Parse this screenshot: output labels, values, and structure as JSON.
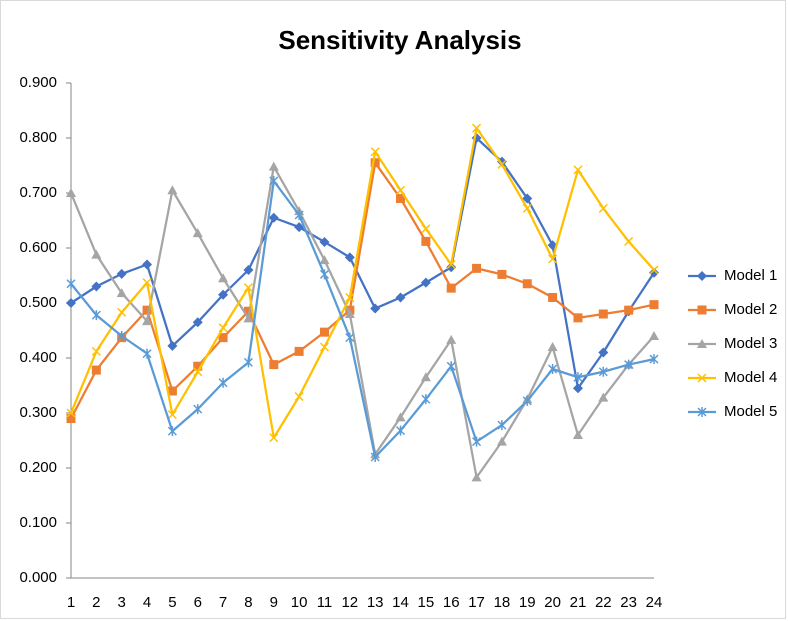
{
  "chart_data": {
    "type": "line",
    "title": "Sensitivity Analysis",
    "categories": [
      "1",
      "2",
      "3",
      "4",
      "5",
      "6",
      "7",
      "8",
      "9",
      "10",
      "11",
      "12",
      "13",
      "14",
      "15",
      "16",
      "17",
      "18",
      "19",
      "20",
      "21",
      "22",
      "23",
      "24"
    ],
    "ylim": [
      0,
      0.9
    ],
    "yticks": [
      {
        "value": 0,
        "label": "0.000"
      },
      {
        "value": 0.1,
        "label": "0.100"
      },
      {
        "value": 0.2,
        "label": "0.200"
      },
      {
        "value": 0.3,
        "label": "0.300"
      },
      {
        "value": 0.4,
        "label": "0.400"
      },
      {
        "value": 0.5,
        "label": "0.500"
      },
      {
        "value": 0.6,
        "label": "0.600"
      },
      {
        "value": 0.7,
        "label": "0.700"
      },
      {
        "value": 0.8,
        "label": "0.800"
      },
      {
        "value": 0.9,
        "label": "0.900"
      }
    ],
    "grid": false,
    "legend": "right",
    "series": [
      {
        "name": "Model 1",
        "color": "#4472c4",
        "marker": "diamond",
        "values": [
          0.5,
          0.53,
          0.553,
          0.57,
          0.422,
          0.465,
          0.515,
          0.56,
          0.655,
          0.638,
          0.611,
          0.583,
          0.49,
          0.51,
          0.537,
          0.565,
          0.8,
          0.757,
          0.69,
          0.605,
          0.345,
          0.41,
          0.485,
          0.555
        ]
      },
      {
        "name": "Model 2",
        "color": "#ed7d31",
        "marker": "square",
        "values": [
          0.29,
          0.378,
          0.437,
          0.487,
          0.34,
          0.385,
          0.437,
          0.485,
          0.388,
          0.412,
          0.447,
          0.487,
          0.755,
          0.69,
          0.612,
          0.527,
          0.563,
          0.552,
          0.535,
          0.51,
          0.473,
          0.48,
          0.487,
          0.497
        ]
      },
      {
        "name": "Model 3",
        "color": "#a5a5a5",
        "marker": "triangle",
        "values": [
          0.7,
          0.588,
          0.518,
          0.467,
          0.705,
          0.627,
          0.545,
          0.472,
          0.748,
          0.667,
          0.578,
          0.48,
          0.225,
          0.292,
          0.365,
          0.433,
          0.183,
          0.248,
          0.325,
          0.42,
          0.26,
          0.328,
          0.388,
          0.44
        ]
      },
      {
        "name": "Model 4",
        "color": "#ffc000",
        "marker": "x",
        "values": [
          0.3,
          0.412,
          0.483,
          0.537,
          0.297,
          0.375,
          0.455,
          0.528,
          0.255,
          0.33,
          0.42,
          0.51,
          0.775,
          0.705,
          0.635,
          0.57,
          0.818,
          0.752,
          0.672,
          0.58,
          0.742,
          0.672,
          0.612,
          0.56
        ]
      },
      {
        "name": "Model 5",
        "color": "#5b9bd5",
        "marker": "star",
        "values": [
          0.535,
          0.478,
          0.44,
          0.408,
          0.267,
          0.307,
          0.355,
          0.392,
          0.722,
          0.66,
          0.552,
          0.437,
          0.22,
          0.268,
          0.325,
          0.385,
          0.248,
          0.278,
          0.322,
          0.38,
          0.365,
          0.375,
          0.388,
          0.398
        ]
      }
    ]
  }
}
